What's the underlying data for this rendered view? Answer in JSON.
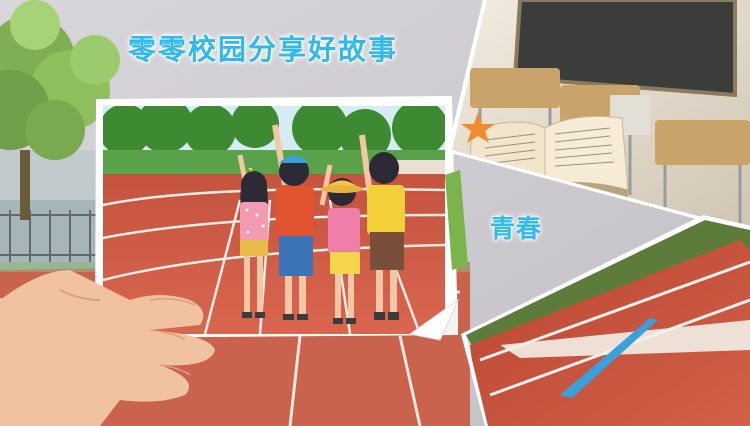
{
  "banner": {
    "title": "零零校园分享好故事",
    "subtitle": "青春"
  },
  "colors": {
    "background": "#c8c7cc",
    "title_text": "#2fb9ee",
    "track_red": "#c9523f",
    "track_lane": "#f3efe8",
    "grass_green": "#4f9a3c",
    "classroom_wall": "#e9e2d6",
    "chalkboard": "#3b3d3a",
    "book_page": "#f1e6cc",
    "skin": "#f3c7a3",
    "flag_blue": "#3aa0da"
  },
  "icons": [
    "tree-icon",
    "hand-icon",
    "kids-group-illustration",
    "open-book-icon",
    "starfish-icon",
    "chalkboard-icon",
    "running-track-icon"
  ]
}
